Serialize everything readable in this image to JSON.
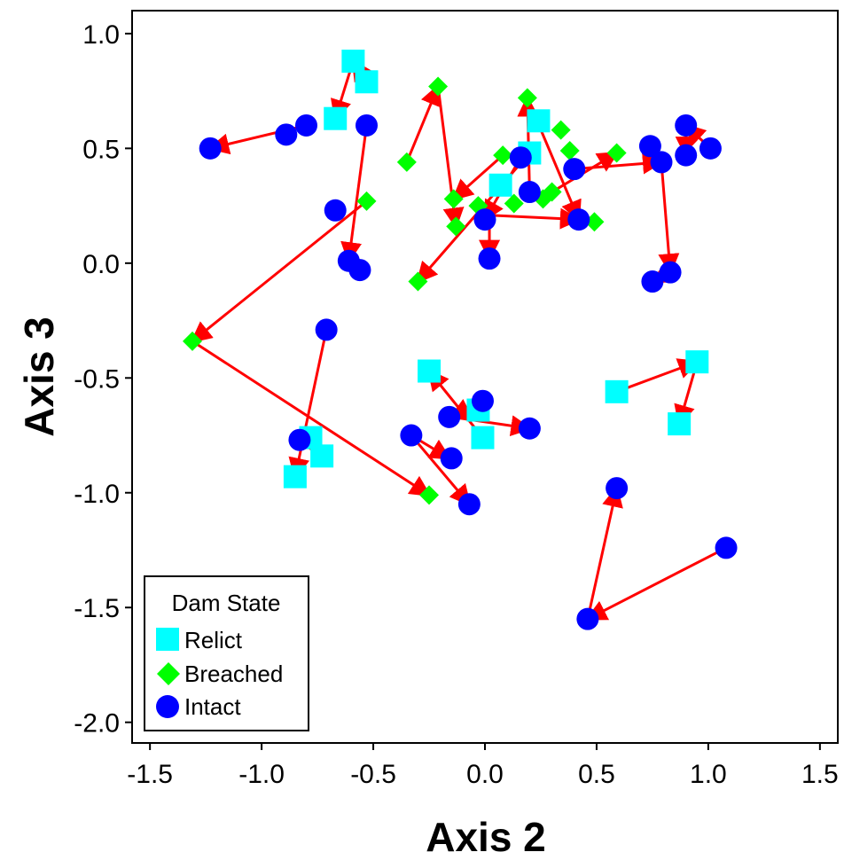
{
  "chart_data": {
    "type": "scatter",
    "xlabel": "Axis 2",
    "ylabel": "Axis 3",
    "xlim": [
      -1.58,
      1.58
    ],
    "ylim": [
      -2.09,
      1.1
    ],
    "xticks": [
      "-1.5",
      "-1.0",
      "-0.5",
      "0.0",
      "0.5",
      "1.0",
      "1.5"
    ],
    "xtick_values": [
      -1.5,
      -1.0,
      -0.5,
      0.0,
      0.5,
      1.0,
      1.5
    ],
    "yticks": [
      "1.0",
      "0.5",
      "0.0",
      "-0.5",
      "-1.0",
      "-1.5",
      "-2.0"
    ],
    "ytick_values": [
      1.0,
      0.5,
      0.0,
      -0.5,
      -1.0,
      -1.5,
      -2.0
    ],
    "grid": false,
    "legend": {
      "title": "Dam State",
      "placement": "bottom-left",
      "entries": [
        {
          "label": "Relict",
          "shape": "square",
          "color": "#00FFFF"
        },
        {
          "label": "Breached",
          "shape": "diamond",
          "color": "#00FF00"
        },
        {
          "label": "Intact",
          "shape": "circle",
          "color": "#0000FF"
        }
      ]
    },
    "arrow_color": "#FF0000",
    "series": [
      {
        "name": "Relict",
        "shape": "square",
        "color": "#00FFFF",
        "x": [
          -0.59,
          -0.53,
          -0.67,
          0.2,
          0.24,
          0.07,
          -0.25,
          -0.03,
          -0.01,
          0.59,
          0.95,
          0.87,
          -0.78,
          -0.85,
          -0.73
        ],
        "y": [
          0.88,
          0.79,
          0.63,
          0.48,
          0.62,
          0.34,
          -0.47,
          -0.64,
          -0.76,
          -0.56,
          -0.43,
          -0.7,
          -0.76,
          -0.93,
          -0.84
        ]
      },
      {
        "name": "Breached",
        "shape": "diamond",
        "color": "#00FF00",
        "x": [
          -0.21,
          -0.35,
          -0.14,
          -0.13,
          0.19,
          0.34,
          0.38,
          0.59,
          0.26,
          0.3,
          0.49,
          0.08,
          0.13,
          -0.03,
          -0.3,
          -0.53,
          -1.31,
          -0.25
        ],
        "y": [
          0.77,
          0.44,
          0.28,
          0.16,
          0.72,
          0.58,
          0.49,
          0.48,
          0.28,
          0.31,
          0.18,
          0.47,
          0.26,
          0.25,
          -0.08,
          0.27,
          -0.34,
          -1.01
        ]
      },
      {
        "name": "Intact",
        "shape": "circle",
        "color": "#0000FF",
        "x": [
          -1.23,
          -0.89,
          -0.8,
          -0.67,
          -0.53,
          -0.61,
          -0.56,
          -0.71,
          0.16,
          0.4,
          0.74,
          0.79,
          0.9,
          0.9,
          1.01,
          0.83,
          0.75,
          0.42,
          0.2,
          0.0,
          0.02,
          -0.83,
          -0.33,
          -0.16,
          -0.15,
          -0.01,
          0.2,
          -0.07,
          0.59,
          1.08,
          0.46
        ],
        "y": [
          0.5,
          0.56,
          0.6,
          0.23,
          0.6,
          0.01,
          -0.03,
          -0.29,
          0.46,
          0.41,
          0.51,
          0.44,
          0.6,
          0.47,
          0.5,
          -0.04,
          -0.08,
          0.19,
          0.31,
          0.19,
          0.02,
          -0.77,
          -0.75,
          -0.67,
          -0.85,
          -0.6,
          -0.72,
          -1.05,
          -0.98,
          -1.24,
          -1.55
        ]
      }
    ],
    "arrows": [
      {
        "from": [
          -0.8,
          0.6
        ],
        "to": [
          -1.23,
          0.5
        ]
      },
      {
        "from": [
          -0.53,
          0.79
        ],
        "to": [
          -0.59,
          0.88
        ]
      },
      {
        "from": [
          -0.59,
          0.88
        ],
        "to": [
          -0.67,
          0.63
        ]
      },
      {
        "from": [
          -0.53,
          0.6
        ],
        "to": [
          -0.61,
          0.01
        ]
      },
      {
        "from": [
          -0.53,
          0.27
        ],
        "to": [
          -1.31,
          -0.34
        ]
      },
      {
        "from": [
          -1.31,
          -0.34
        ],
        "to": [
          -0.25,
          -1.01
        ]
      },
      {
        "from": [
          -0.71,
          -0.29
        ],
        "to": [
          -0.85,
          -0.93
        ]
      },
      {
        "from": [
          -0.78,
          -0.76
        ],
        "to": [
          -0.73,
          -0.84
        ]
      },
      {
        "from": [
          -0.35,
          0.44
        ],
        "to": [
          -0.21,
          0.77
        ]
      },
      {
        "from": [
          -0.21,
          0.77
        ],
        "to": [
          -0.13,
          0.16
        ]
      },
      {
        "from": [
          0.08,
          0.47
        ],
        "to": [
          -0.14,
          0.28
        ]
      },
      {
        "from": [
          0.2,
          0.48
        ],
        "to": [
          -0.3,
          -0.08
        ]
      },
      {
        "from": [
          0.16,
          0.46
        ],
        "to": [
          0.0,
          0.19
        ]
      },
      {
        "from": [
          0.2,
          0.31
        ],
        "to": [
          0.19,
          0.72
        ]
      },
      {
        "from": [
          0.19,
          0.72
        ],
        "to": [
          0.42,
          0.19
        ]
      },
      {
        "from": [
          0.3,
          0.31
        ],
        "to": [
          0.59,
          0.48
        ]
      },
      {
        "from": [
          0.4,
          0.41
        ],
        "to": [
          0.79,
          0.44
        ]
      },
      {
        "from": [
          0.79,
          0.44
        ],
        "to": [
          0.83,
          -0.04
        ]
      },
      {
        "from": [
          0.83,
          -0.04
        ],
        "to": [
          0.75,
          -0.08
        ]
      },
      {
        "from": [
          0.0,
          0.21
        ],
        "to": [
          0.42,
          0.19
        ]
      },
      {
        "from": [
          0.02,
          0.21
        ],
        "to": [
          0.02,
          0.02
        ]
      },
      {
        "from": [
          1.01,
          0.5
        ],
        "to": [
          0.9,
          0.6
        ]
      },
      {
        "from": [
          0.9,
          0.6
        ],
        "to": [
          0.9,
          0.47
        ]
      },
      {
        "from": [
          -0.01,
          -0.6
        ],
        "to": [
          -0.15,
          -0.67
        ]
      },
      {
        "from": [
          -0.15,
          -0.67
        ],
        "to": [
          0.2,
          -0.72
        ]
      },
      {
        "from": [
          -0.01,
          -0.76
        ],
        "to": [
          -0.25,
          -0.47
        ]
      },
      {
        "from": [
          -0.33,
          -0.75
        ],
        "to": [
          -0.16,
          -0.85
        ]
      },
      {
        "from": [
          -0.33,
          -0.75
        ],
        "to": [
          -0.07,
          -1.05
        ]
      },
      {
        "from": [
          0.59,
          -0.56
        ],
        "to": [
          0.95,
          -0.43
        ]
      },
      {
        "from": [
          0.95,
          -0.43
        ],
        "to": [
          0.87,
          -0.7
        ]
      },
      {
        "from": [
          1.08,
          -1.24
        ],
        "to": [
          0.46,
          -1.55
        ]
      },
      {
        "from": [
          0.46,
          -1.55
        ],
        "to": [
          0.59,
          -0.98
        ]
      }
    ]
  }
}
